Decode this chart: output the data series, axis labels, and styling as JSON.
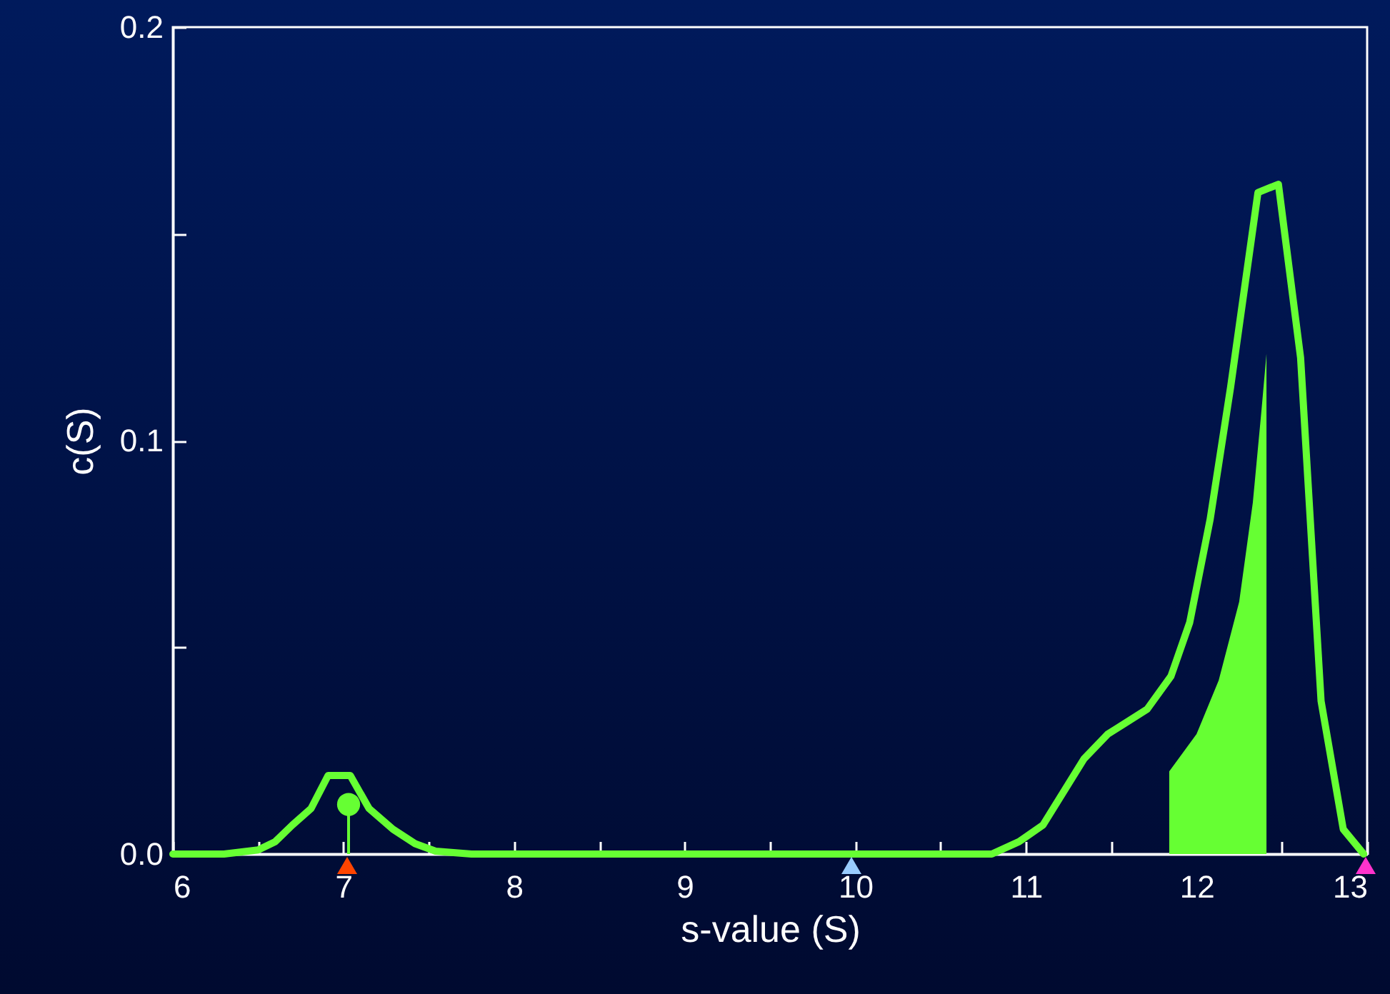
{
  "chart_data": {
    "type": "line",
    "xlabel": "s-value (S)",
    "ylabel": "c(S)",
    "xlim": [
      6,
      13
    ],
    "ylim": [
      0,
      0.2
    ],
    "xticks": [
      6,
      {
        "value": 6.5,
        "label": null
      },
      7,
      {
        "value": 7.5,
        "label": null
      },
      8,
      {
        "value": 8.5,
        "label": null
      },
      9,
      {
        "value": 9.5,
        "label": null
      },
      10,
      {
        "value": 10.5,
        "label": null
      },
      11,
      {
        "value": 11.5,
        "label": null
      },
      12,
      {
        "value": 12.5,
        "label": null
      },
      13
    ],
    "yticks": [
      {
        "value": 0,
        "label": "0.0"
      },
      {
        "value": 0.05,
        "label": null
      },
      0.1,
      {
        "value": 0.15,
        "label": null
      },
      0.2
    ],
    "grid": false,
    "line_style": "solid",
    "series": [
      {
        "color": "#66ff33",
        "x": [
          6.0,
          6.3,
          6.5,
          6.6,
          6.7,
          6.81,
          6.91,
          7.04,
          7.15,
          7.29,
          7.42,
          7.54,
          7.75,
          10.8,
          10.96,
          11.1,
          11.34,
          11.48,
          11.71,
          11.85,
          11.96,
          12.08,
          12.2,
          12.36,
          12.48,
          12.61,
          12.73,
          12.86,
          12.98
        ],
        "values": [
          0,
          0,
          0.001,
          0.003,
          0.007,
          0.011,
          0.019,
          0.019,
          0.011,
          0.006,
          0.0025,
          0.0007,
          0,
          0,
          0.003,
          0.007,
          0.023,
          0.029,
          0.035,
          0.043,
          0.056,
          0.081,
          0.113,
          0.16,
          0.162,
          0.12,
          0.037,
          0.006,
          0
        ]
      },
      {
        "type": "area",
        "color": "#66ff33",
        "x": [
          11.84,
          12.0,
          12.13,
          12.25,
          12.33,
          12.38,
          12.41
        ],
        "values": [
          0.02,
          0.029,
          0.042,
          0.061,
          0.085,
          0.107,
          0.121
        ]
      },
      {
        "type": "lollipop",
        "color": "#66ff33",
        "x": [
          7.03
        ],
        "values": [
          0.012
        ]
      }
    ]
  }
}
